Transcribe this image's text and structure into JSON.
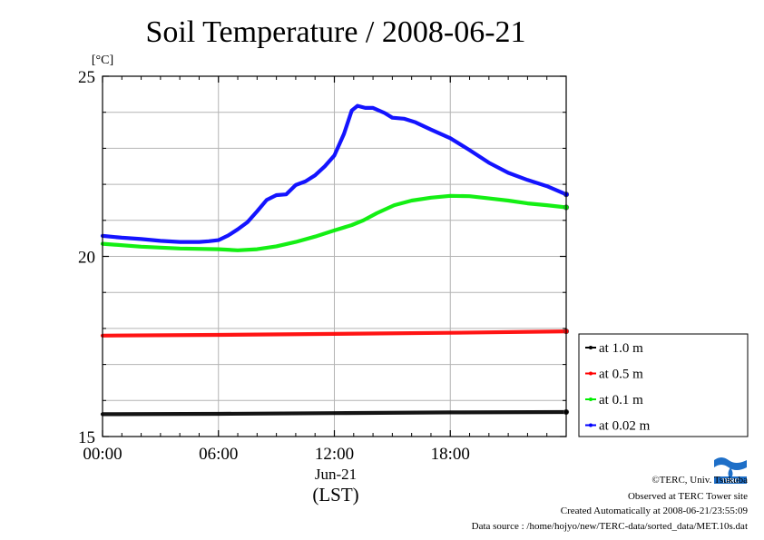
{
  "chart_data": {
    "type": "line",
    "title": "Soil Temperature / 2008-06-21",
    "ylabel": "[°C]",
    "xlabel_date": "Jun-21",
    "xlabel": "(LST)",
    "xlim": [
      0,
      24
    ],
    "ylim": [
      15,
      25
    ],
    "x_ticks": [
      0,
      6,
      12,
      18
    ],
    "x_tick_labels": [
      "00:00",
      "06:00",
      "12:00",
      "18:00"
    ],
    "y_ticks": [
      15,
      20,
      25
    ],
    "y_tick_labels": [
      "15",
      "20",
      "25"
    ],
    "y_minor_gridlines": [
      16,
      17,
      18,
      19,
      21,
      22,
      23,
      24
    ],
    "grid": true,
    "legend_position": "right",
    "series": [
      {
        "name": "at 1.0 m",
        "color": "#000000",
        "points": [
          [
            0,
            15.62
          ],
          [
            6,
            15.63
          ],
          [
            12,
            15.65
          ],
          [
            18,
            15.67
          ],
          [
            24,
            15.68
          ]
        ]
      },
      {
        "name": "at 0.5 m",
        "color": "#ff0000",
        "points": [
          [
            0,
            17.8
          ],
          [
            6,
            17.82
          ],
          [
            12,
            17.85
          ],
          [
            18,
            17.88
          ],
          [
            24,
            17.92
          ]
        ]
      },
      {
        "name": "at 0.1 m",
        "color": "#00ee00",
        "points": [
          [
            0,
            20.35
          ],
          [
            2,
            20.27
          ],
          [
            4,
            20.22
          ],
          [
            6,
            20.2
          ],
          [
            7,
            20.17
          ],
          [
            8,
            20.2
          ],
          [
            9,
            20.28
          ],
          [
            10,
            20.4
          ],
          [
            11,
            20.55
          ],
          [
            12,
            20.72
          ],
          [
            12.9,
            20.87
          ],
          [
            13.5,
            21.0
          ],
          [
            14.2,
            21.2
          ],
          [
            15.1,
            21.42
          ],
          [
            16,
            21.55
          ],
          [
            17,
            21.63
          ],
          [
            18,
            21.68
          ],
          [
            19,
            21.67
          ],
          [
            20,
            21.61
          ],
          [
            21,
            21.55
          ],
          [
            22,
            21.47
          ],
          [
            23,
            21.42
          ],
          [
            24,
            21.36
          ]
        ]
      },
      {
        "name": "at 0.02 m",
        "color": "#0000ff",
        "points": [
          [
            0,
            20.57
          ],
          [
            1,
            20.52
          ],
          [
            2,
            20.48
          ],
          [
            3,
            20.43
          ],
          [
            4,
            20.4
          ],
          [
            5,
            20.4
          ],
          [
            5.5,
            20.42
          ],
          [
            6,
            20.45
          ],
          [
            6.5,
            20.58
          ],
          [
            7,
            20.75
          ],
          [
            7.5,
            20.95
          ],
          [
            8,
            21.25
          ],
          [
            8.5,
            21.57
          ],
          [
            9,
            21.7
          ],
          [
            9.5,
            21.72
          ],
          [
            10,
            21.98
          ],
          [
            10.5,
            22.08
          ],
          [
            11,
            22.25
          ],
          [
            11.5,
            22.5
          ],
          [
            12,
            22.8
          ],
          [
            12.5,
            23.4
          ],
          [
            12.9,
            24.05
          ],
          [
            13.2,
            24.18
          ],
          [
            13.6,
            24.12
          ],
          [
            14,
            24.12
          ],
          [
            14.6,
            23.98
          ],
          [
            15,
            23.85
          ],
          [
            15.6,
            23.82
          ],
          [
            16.2,
            23.72
          ],
          [
            17,
            23.52
          ],
          [
            18,
            23.28
          ],
          [
            19,
            22.95
          ],
          [
            20,
            22.6
          ],
          [
            21,
            22.32
          ],
          [
            22,
            22.12
          ],
          [
            23,
            21.95
          ],
          [
            24,
            21.72
          ]
        ]
      }
    ]
  },
  "footer": {
    "copyright": "©TERC, Univ. Tsukuba",
    "observed": "Observed at TERC Tower site",
    "created": "Created Automatically at 2008-06-21/23:55:09",
    "source": "Data source : /home/hojyo/new/TERC-data/sorted_data/MET.10s.dat",
    "logo_text": "TERC"
  }
}
